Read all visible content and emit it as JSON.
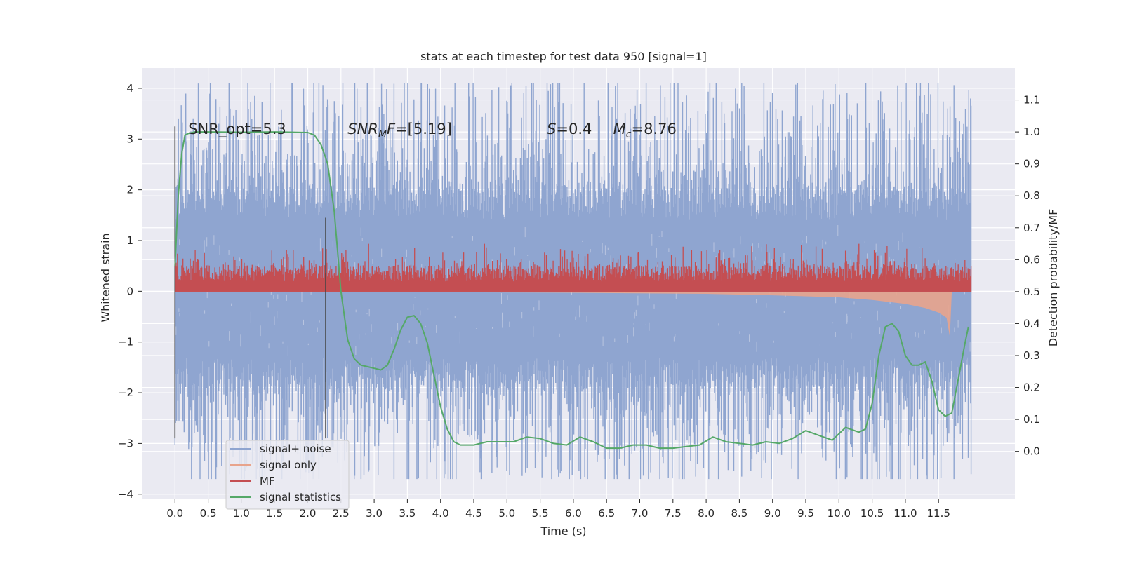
{
  "chart_data": {
    "type": "line",
    "title": "stats at each timestep for test data 950 [signal=1]",
    "xlabel": "Time (s)",
    "ylabel": "Whitened strain",
    "ylabel_right": "Detection probability/MF",
    "xlim": [
      -0.5,
      12.65
    ],
    "ylim": [
      -4.1,
      4.4
    ],
    "ylim_right": [
      -0.15,
      1.2
    ],
    "x_ticks": [
      0.0,
      0.5,
      1.0,
      1.5,
      2.0,
      2.5,
      3.0,
      3.5,
      4.0,
      4.5,
      5.0,
      5.5,
      6.0,
      6.5,
      7.0,
      7.5,
      8.0,
      8.5,
      9.0,
      9.5,
      10.0,
      10.5,
      11.0,
      11.5
    ],
    "x_tick_labels": [
      "0.0",
      "0.5",
      "1.0",
      "1.5",
      "2.0",
      "2.5",
      "3.0",
      "3.5",
      "4.0",
      "4.5",
      "5.0",
      "5.5",
      "6.0",
      "6.5",
      "7.0",
      "7.5",
      "8.0",
      "8.5",
      "9.0",
      "9.5",
      "10.0",
      "10.5",
      "11.0",
      "11.5"
    ],
    "y_ticks": [
      -4,
      -3,
      -2,
      -1,
      0,
      1,
      2,
      3,
      4
    ],
    "y_tick_labels": [
      "−4",
      "−3",
      "−2",
      "−1",
      "0",
      "1",
      "2",
      "3",
      "4"
    ],
    "y_ticks_right": [
      0.0,
      0.1,
      0.2,
      0.3,
      0.4,
      0.5,
      0.6,
      0.7,
      0.8,
      0.9,
      1.0,
      1.1
    ],
    "y_tick_labels_right": [
      "0.0",
      "0.1",
      "0.2",
      "0.3",
      "0.4",
      "0.5",
      "0.6",
      "0.7",
      "0.8",
      "0.9",
      "1.0",
      "1.1"
    ],
    "grid": true,
    "legend_position": "bottom-left",
    "annotations": [
      {
        "text": "SNR_opt=5.3",
        "x": 0.2,
        "y": 3.2
      },
      {
        "text": "SNRMF=[5.19]",
        "x": 2.6,
        "y": 3.2
      },
      {
        "text": "S=0.4",
        "x": 5.6,
        "y": 3.2
      },
      {
        "text": "Mc=8.76",
        "x": 6.6,
        "y": 3.2
      }
    ],
    "series": [
      {
        "name": "signal+ noise",
        "color": "#8fa5d0",
        "axis": "left",
        "style": "noise band",
        "x_range": [
          0.0,
          11.99
        ],
        "typical_range": [
          -1.3,
          1.4
        ],
        "peak_range": [
          -3.7,
          4.1
        ]
      },
      {
        "name": "signal only",
        "color": "#e8a48c",
        "axis": "left",
        "style": "chirp envelope",
        "x": [
          0.0,
          2.0,
          4.0,
          6.0,
          8.0,
          9.0,
          10.0,
          10.5,
          11.0,
          11.3,
          11.5,
          11.62,
          11.67,
          11.7,
          11.99
        ],
        "y_upper": [
          0.01,
          0.01,
          0.02,
          0.03,
          0.04,
          0.05,
          0.06,
          0.07,
          0.08,
          0.09,
          0.1,
          0.1,
          0.05,
          0.0,
          0.0
        ],
        "y_lower": [
          -0.01,
          -0.01,
          -0.02,
          -0.03,
          -0.05,
          -0.08,
          -0.12,
          -0.17,
          -0.25,
          -0.33,
          -0.42,
          -0.52,
          -0.9,
          0.0,
          0.0
        ]
      },
      {
        "name": "MF",
        "color": "#c44e52",
        "axis": "right",
        "style": "noisy band",
        "x_range": [
          0.0,
          11.99
        ],
        "base": 0.5,
        "typical_top": 0.55,
        "peak_top": 0.63
      },
      {
        "name": "signal statistics",
        "color": "#55a868",
        "axis": "right",
        "x": [
          0.0,
          0.05,
          0.1,
          0.15,
          0.2,
          0.3,
          0.5,
          1.0,
          1.5,
          2.0,
          2.1,
          2.2,
          2.3,
          2.4,
          2.5,
          2.6,
          2.7,
          2.8,
          2.9,
          3.0,
          3.1,
          3.2,
          3.3,
          3.4,
          3.5,
          3.6,
          3.7,
          3.8,
          3.9,
          4.0,
          4.1,
          4.2,
          4.3,
          4.5,
          4.7,
          4.9,
          5.1,
          5.3,
          5.5,
          5.7,
          5.9,
          6.1,
          6.3,
          6.5,
          6.7,
          6.9,
          7.1,
          7.3,
          7.5,
          7.7,
          7.9,
          8.1,
          8.3,
          8.5,
          8.7,
          8.9,
          9.1,
          9.3,
          9.5,
          9.7,
          9.9,
          10.1,
          10.3,
          10.4,
          10.5,
          10.6,
          10.7,
          10.8,
          10.9,
          11.0,
          11.1,
          11.2,
          11.3,
          11.4,
          11.5,
          11.6,
          11.7,
          11.8,
          11.9,
          11.95
        ],
        "y": [
          0.58,
          0.8,
          0.93,
          0.99,
          0.995,
          1.0,
          1.0,
          0.999,
          1.0,
          0.998,
          0.99,
          0.96,
          0.9,
          0.75,
          0.5,
          0.35,
          0.29,
          0.27,
          0.265,
          0.26,
          0.255,
          0.27,
          0.32,
          0.38,
          0.42,
          0.425,
          0.4,
          0.34,
          0.24,
          0.14,
          0.07,
          0.03,
          0.02,
          0.02,
          0.03,
          0.03,
          0.03,
          0.045,
          0.04,
          0.025,
          0.02,
          0.045,
          0.03,
          0.01,
          0.01,
          0.02,
          0.02,
          0.01,
          0.01,
          0.015,
          0.02,
          0.045,
          0.03,
          0.025,
          0.02,
          0.03,
          0.025,
          0.04,
          0.065,
          0.05,
          0.035,
          0.075,
          0.06,
          0.07,
          0.15,
          0.3,
          0.39,
          0.4,
          0.375,
          0.3,
          0.27,
          0.27,
          0.28,
          0.22,
          0.13,
          0.11,
          0.12,
          0.23,
          0.34,
          0.39
        ]
      }
    ],
    "vertical_markers": [
      {
        "x": 0.0,
        "y_range": [
          -2.9,
          3.25
        ],
        "color": "#444444"
      },
      {
        "x": 2.27,
        "y_range": [
          -2.9,
          1.45
        ],
        "color": "#444444"
      }
    ]
  },
  "legend": {
    "items": [
      {
        "label": "signal+ noise",
        "color": "#8fa5d0"
      },
      {
        "label": "signal only",
        "color": "#e8a48c"
      },
      {
        "label": "MF",
        "color": "#c44e52"
      },
      {
        "label": "signal statistics",
        "color": "#55a868"
      }
    ]
  },
  "colors": {
    "axes_background": "#eaeaf2",
    "grid": "#ffffff",
    "text": "#262626"
  }
}
